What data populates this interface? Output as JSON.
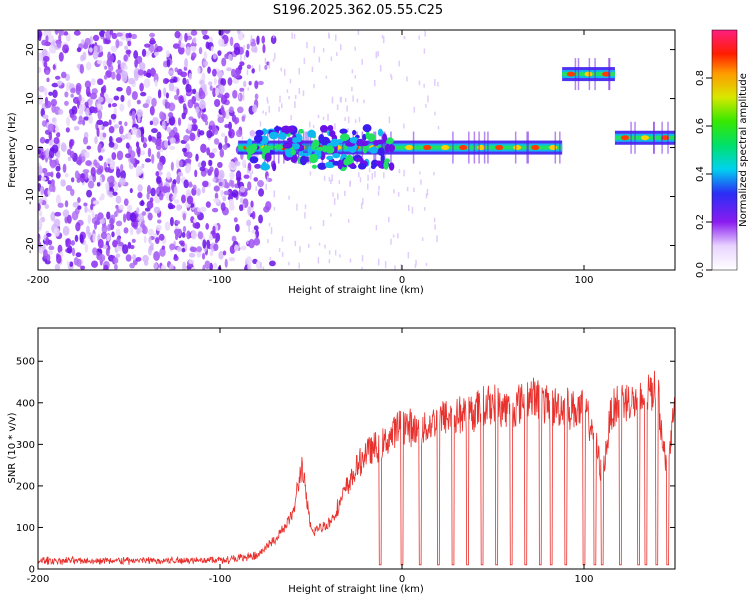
{
  "title": "S196.2025.362.05.55.C25",
  "colors": {
    "snr_line": "#e8302c",
    "spectrum": "#7b1fe8",
    "axis": "#000000"
  },
  "chart_data": [
    {
      "type": "heatmap",
      "name": "spectrogram",
      "xlabel": "Height of straight line (km)",
      "ylabel": "Frequency (Hz)",
      "xlim": [
        -200,
        150
      ],
      "ylim": [
        -25,
        24
      ],
      "xticks": [
        -200,
        -100,
        0,
        100
      ],
      "xtick_labels": [
        "-200",
        "-100",
        "0",
        "100"
      ],
      "yticks": [
        -20,
        -10,
        0,
        10,
        20
      ],
      "ytick_labels": [
        "-20",
        "-10",
        "0",
        "10",
        "20"
      ],
      "colorbar": {
        "label": "Normalized spectral amplitude",
        "range": [
          0,
          1
        ],
        "ticks": [
          0.0,
          0.2,
          0.4,
          0.6,
          0.8
        ],
        "tick_labels": [
          "0.0",
          "0.2",
          "0.4",
          "0.6",
          "0.8"
        ]
      },
      "signal_segments": [
        {
          "x_start": -90,
          "x_end": 88,
          "frequency_hz": 0,
          "peak_amplitude": 0.85
        },
        {
          "x_start": 88,
          "x_end": 117,
          "frequency_hz": 15,
          "peak_amplitude": 0.9
        },
        {
          "x_start": 117,
          "x_end": 150,
          "frequency_hz": 2,
          "peak_amplitude": 0.85
        }
      ],
      "noise_region": {
        "x_start": -200,
        "x_end": -80,
        "description": "broadband noise"
      }
    },
    {
      "type": "line",
      "name": "snr",
      "xlabel": "Height of straight line (km)",
      "ylabel": "SNR (10 * v/v)",
      "xlim": [
        -200,
        150
      ],
      "ylim": [
        0,
        580
      ],
      "xticks": [
        -200,
        -100,
        0,
        100
      ],
      "xtick_labels": [
        "-200",
        "-100",
        "0",
        "100"
      ],
      "yticks": [
        0,
        100,
        200,
        300,
        400,
        500
      ],
      "ytick_labels": [
        "0",
        "100",
        "200",
        "300",
        "400",
        "500"
      ],
      "x": [
        -200,
        -150,
        -100,
        -80,
        -70,
        -60,
        -55,
        -50,
        -40,
        -35,
        -30,
        -20,
        -10,
        0,
        10,
        20,
        30,
        40,
        50,
        60,
        70,
        80,
        90,
        100,
        105,
        110,
        115,
        120,
        130,
        140,
        145,
        150
      ],
      "y": [
        20,
        20,
        22,
        30,
        70,
        130,
        250,
        90,
        110,
        150,
        200,
        280,
        300,
        350,
        330,
        360,
        370,
        380,
        400,
        380,
        420,
        390,
        390,
        380,
        340,
        220,
        380,
        410,
        400,
        440,
        250,
        380
      ],
      "dip_positions": [
        -12,
        0,
        10,
        20,
        28,
        36,
        44,
        52,
        60,
        68,
        76,
        82,
        90,
        100,
        106,
        110,
        120,
        130,
        134,
        140,
        146
      ],
      "dip_value": 10
    }
  ]
}
